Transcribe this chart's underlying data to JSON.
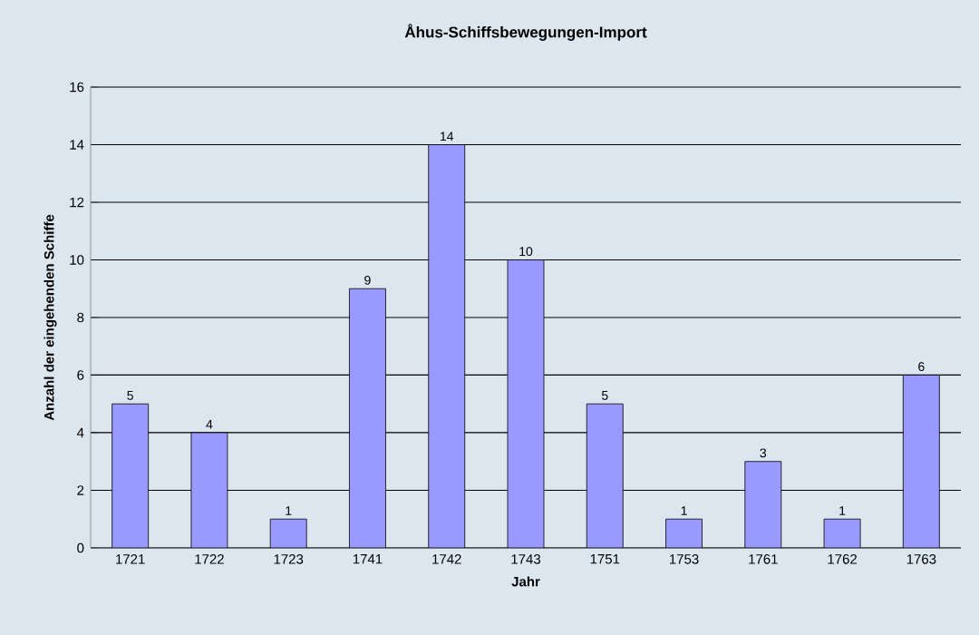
{
  "chart_data": {
    "type": "bar",
    "title": "Åhus-Schiffsbewegungen-Import",
    "xlabel": "Jahr",
    "ylabel": "Anzahl der eingehenden Schiffe",
    "categories": [
      "1721",
      "1722",
      "1723",
      "1741",
      "1742",
      "1743",
      "1751",
      "1753",
      "1761",
      "1762",
      "1763"
    ],
    "values": [
      5,
      4,
      1,
      9,
      14,
      10,
      5,
      1,
      3,
      1,
      6
    ],
    "color": "#9999ff",
    "ylim": [
      0,
      16
    ],
    "yticks": [
      0,
      2,
      4,
      6,
      8,
      10,
      12,
      14,
      16
    ],
    "grid": "y",
    "data_labels": true
  }
}
